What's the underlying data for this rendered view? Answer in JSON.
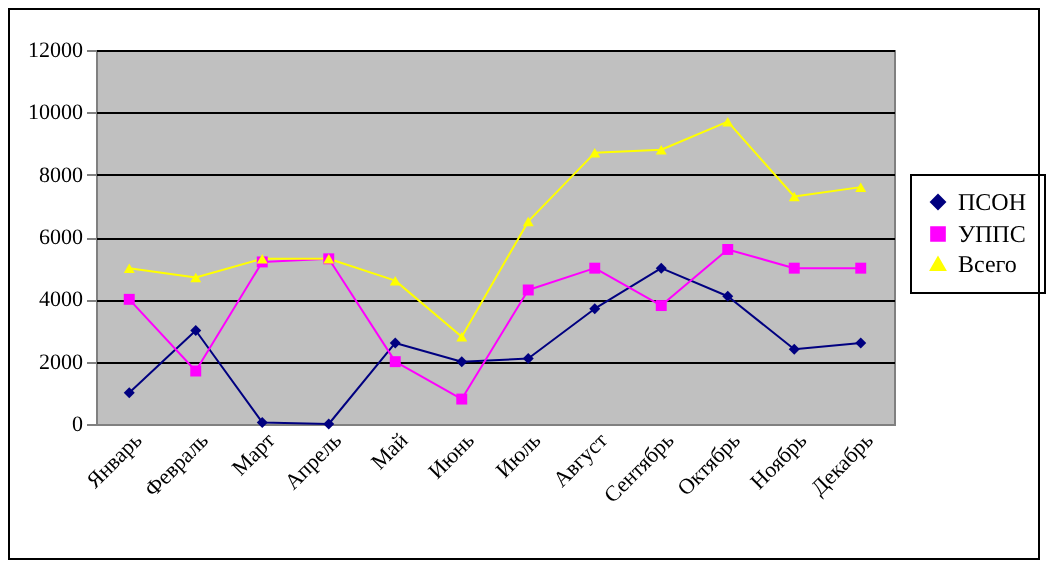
{
  "chart_data": {
    "type": "line",
    "categories": [
      "Январь",
      "Февраль",
      "Март",
      "Апрель",
      "Май",
      "Июнь",
      "Июль",
      "Август",
      "Сентябрь",
      "Октябрь",
      "Ноябрь",
      "Декабрь"
    ],
    "series": [
      {
        "name": "ПСОН",
        "color": "#000080",
        "marker": "diamond",
        "values": [
          1000,
          3000,
          50,
          0,
          2600,
          2000,
          2100,
          3700,
          5000,
          4100,
          2400,
          2600
        ]
      },
      {
        "name": "УППС",
        "color": "#ff00ff",
        "marker": "square",
        "values": [
          4000,
          1700,
          5200,
          5300,
          2000,
          800,
          4300,
          5000,
          3800,
          5600,
          5000,
          5000
        ]
      },
      {
        "name": "Всего",
        "color": "#ffff00",
        "marker": "triangle",
        "values": [
          5000,
          4700,
          5300,
          5300,
          4600,
          2800,
          6500,
          8700,
          8800,
          9700,
          7300,
          7600
        ]
      }
    ],
    "ylim": [
      0,
      12000
    ],
    "yticks": [
      0,
      2000,
      4000,
      6000,
      8000,
      10000,
      12000
    ],
    "grid": "y",
    "legend": "right"
  }
}
